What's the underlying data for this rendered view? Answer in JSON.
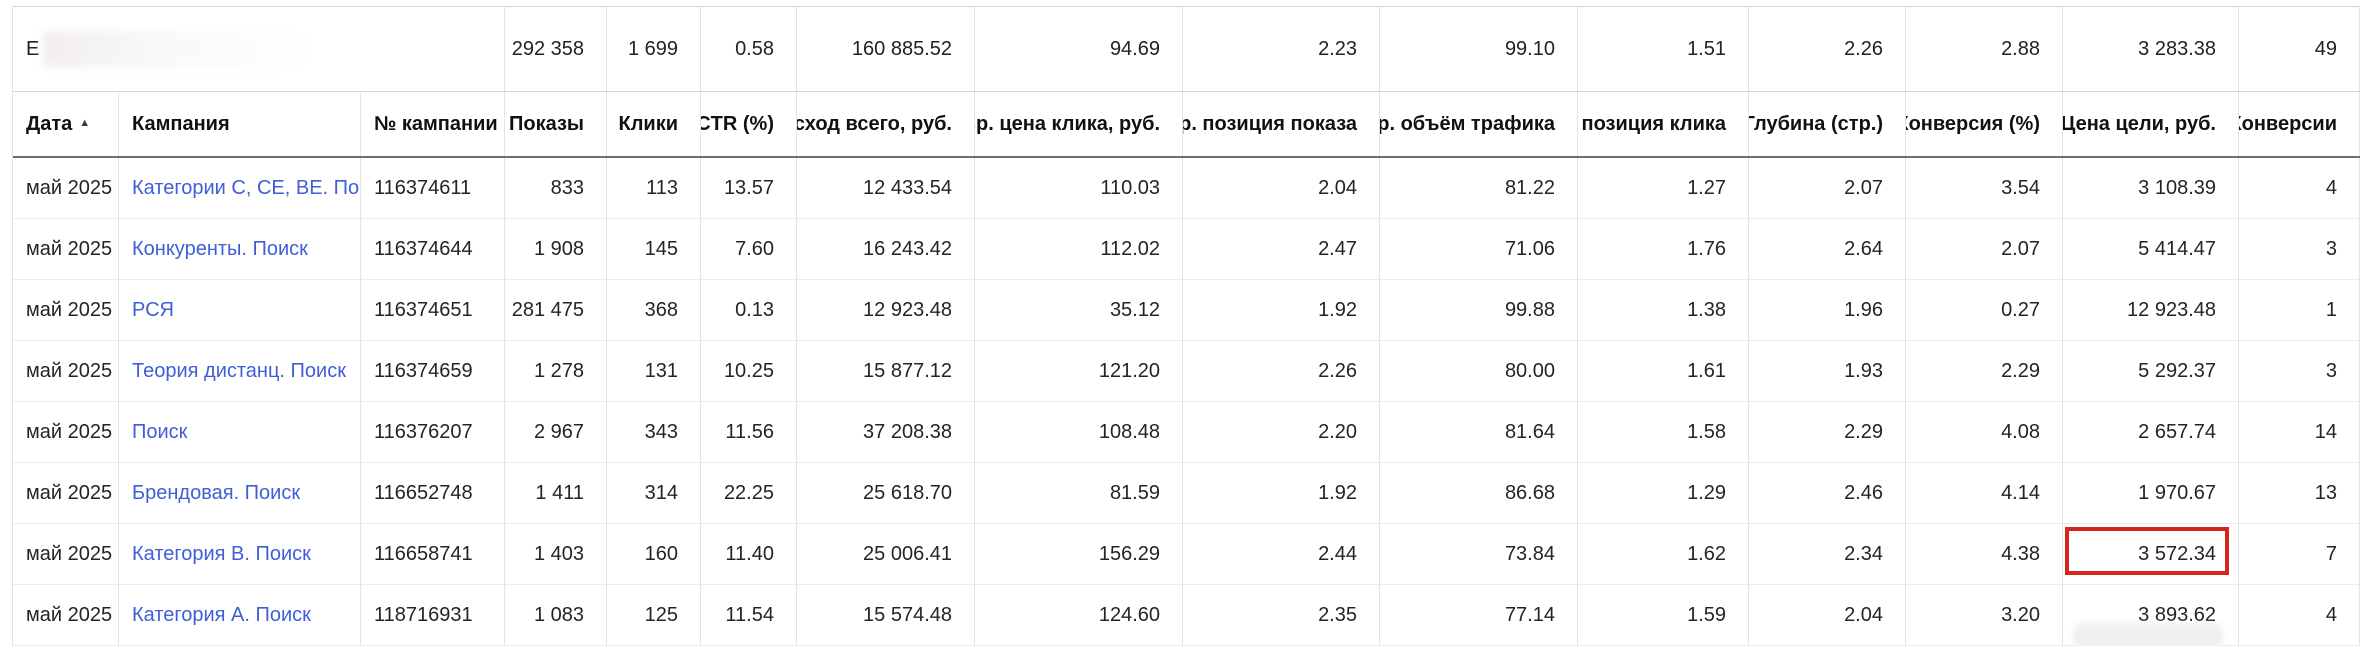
{
  "table": {
    "columns": [
      {
        "key": "date",
        "label": "Дата",
        "align": "left",
        "sort": "asc"
      },
      {
        "key": "campaign",
        "label": "Кампания",
        "align": "left"
      },
      {
        "key": "campaign_id",
        "label": "№ кампании",
        "align": "left"
      },
      {
        "key": "impressions",
        "label": "Показы",
        "align": "right"
      },
      {
        "key": "clicks",
        "label": "Клики",
        "align": "right"
      },
      {
        "key": "ctr",
        "label": "CTR (%)",
        "align": "right"
      },
      {
        "key": "cost_total",
        "label": "Расход всего, руб.",
        "align": "right"
      },
      {
        "key": "avg_cpc",
        "label": "Ср. цена клика, руб.",
        "align": "right"
      },
      {
        "key": "avg_show_pos",
        "label": "Ср. позиция показа",
        "align": "right"
      },
      {
        "key": "avg_traffic",
        "label": "Ср. объём трафика",
        "align": "right"
      },
      {
        "key": "avg_click_pos",
        "label": "Ср. позиция клика",
        "align": "right"
      },
      {
        "key": "depth",
        "label": "Глубина (стр.)",
        "align": "right"
      },
      {
        "key": "conv_rate",
        "label": "Конверсия (%)",
        "align": "right"
      },
      {
        "key": "goal_cost",
        "label": "Цена цели, руб.",
        "align": "right"
      },
      {
        "key": "conversions",
        "label": "Конверсии",
        "align": "right"
      }
    ],
    "totals": {
      "visible_label": "Е",
      "values": [
        "292 358",
        "1 699",
        "0.58",
        "160 885.52",
        "94.69",
        "2.23",
        "99.10",
        "1.51",
        "2.26",
        "2.88",
        "3 283.38",
        "49"
      ]
    },
    "rows": [
      {
        "date": "май 2025",
        "campaign": "Категории С, СЕ, ВЕ. Поиск",
        "campaign_id": "116374611",
        "values": [
          "833",
          "113",
          "13.57",
          "12 433.54",
          "110.03",
          "2.04",
          "81.22",
          "1.27",
          "2.07",
          "3.54",
          "3 108.39",
          "4"
        ]
      },
      {
        "date": "май 2025",
        "campaign": "Конкуренты. Поиск",
        "campaign_id": "116374644",
        "values": [
          "1 908",
          "145",
          "7.60",
          "16 243.42",
          "112.02",
          "2.47",
          "71.06",
          "1.76",
          "2.64",
          "2.07",
          "5 414.47",
          "3"
        ]
      },
      {
        "date": "май 2025",
        "campaign": "РСЯ",
        "campaign_id": "116374651",
        "values": [
          "281 475",
          "368",
          "0.13",
          "12 923.48",
          "35.12",
          "1.92",
          "99.88",
          "1.38",
          "1.96",
          "0.27",
          "12 923.48",
          "1"
        ]
      },
      {
        "date": "май 2025",
        "campaign": "Теория дистанц. Поиск",
        "campaign_id": "116374659",
        "values": [
          "1 278",
          "131",
          "10.25",
          "15 877.12",
          "121.20",
          "2.26",
          "80.00",
          "1.61",
          "1.93",
          "2.29",
          "5 292.37",
          "3"
        ]
      },
      {
        "date": "май 2025",
        "campaign": "Поиск",
        "campaign_id": "116376207",
        "values": [
          "2 967",
          "343",
          "11.56",
          "37 208.38",
          "108.48",
          "2.20",
          "81.64",
          "1.58",
          "2.29",
          "4.08",
          "2 657.74",
          "14"
        ]
      },
      {
        "date": "май 2025",
        "campaign": "Брендовая. Поиск",
        "campaign_id": "116652748",
        "values": [
          "1 411",
          "314",
          "22.25",
          "25 618.70",
          "81.59",
          "1.92",
          "86.68",
          "1.29",
          "2.46",
          "4.14",
          "1 970.67",
          "13"
        ]
      },
      {
        "date": "май 2025",
        "campaign": "Категория В. Поиск",
        "campaign_id": "116658741",
        "values": [
          "1 403",
          "160",
          "11.40",
          "25 006.41",
          "156.29",
          "2.44",
          "73.84",
          "1.62",
          "2.34",
          "4.38",
          "3 572.34",
          "7"
        ]
      },
      {
        "date": "май 2025",
        "campaign": "Категория А. Поиск",
        "campaign_id": "118716931",
        "values": [
          "1 083",
          "125",
          "11.54",
          "15 574.48",
          "124.60",
          "2.35",
          "77.14",
          "1.59",
          "2.04",
          "3.20",
          "3 893.62",
          "4"
        ]
      }
    ],
    "highlight": {
      "row_index": 6,
      "value_index": 10,
      "color": "#d6251d"
    },
    "sort_icon": "▲"
  }
}
